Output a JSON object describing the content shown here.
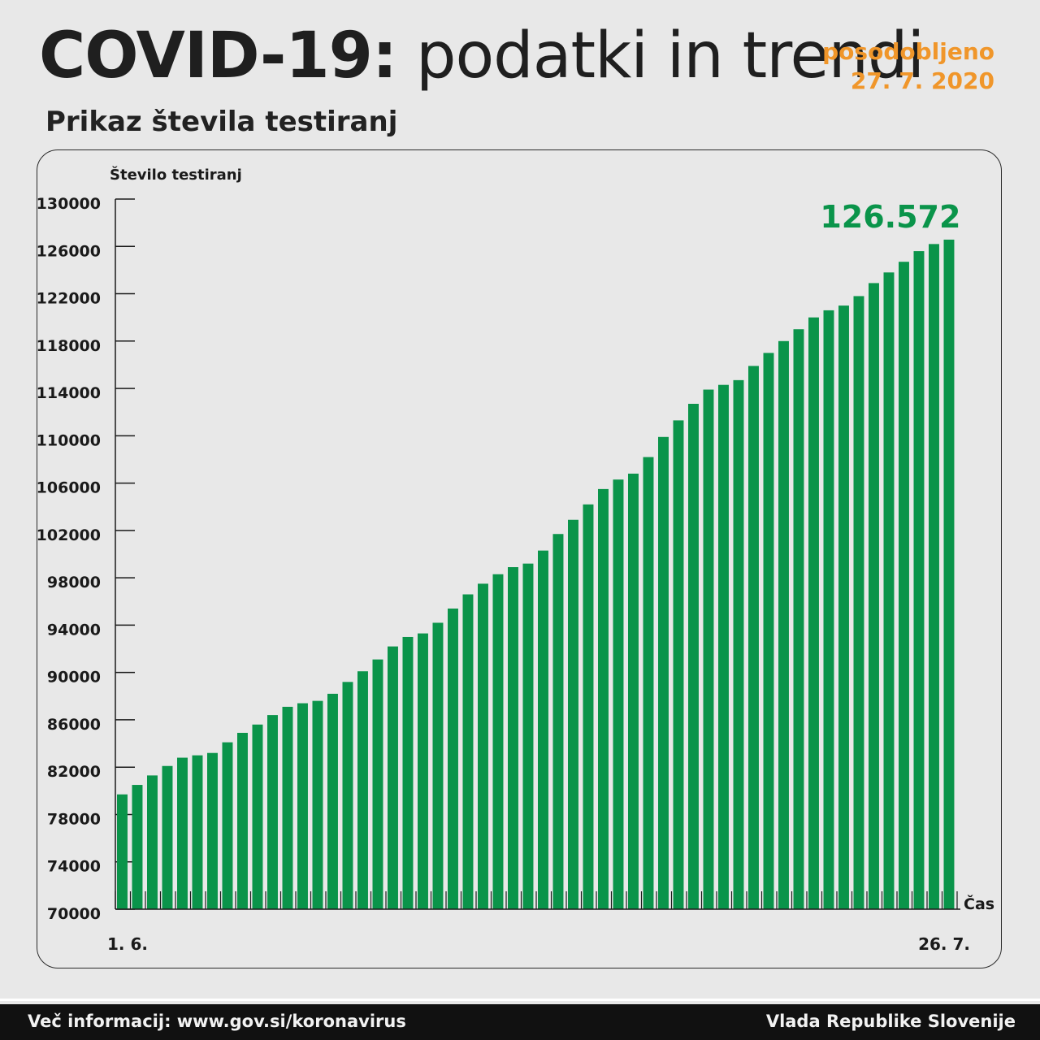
{
  "header": {
    "title_bold": "COVID-19:",
    "title_rest": " podatki in trendi",
    "updated_label": "posodobljeno",
    "updated_date": "27. 7. 2020",
    "subtitle": "Prikaz števila testiranj"
  },
  "footer": {
    "info": "Več informacij: www.gov.si/koronavirus",
    "org": "Vlada Republike Slovenije"
  },
  "colors": {
    "bar": "#0a944a",
    "highlight": "#0a944a",
    "accent": "#f0962a",
    "background": "#e8e8e8"
  },
  "chart_data": {
    "type": "bar",
    "ylabel": "Število testiranj",
    "xlabel": "Čas",
    "ylim": [
      70000,
      130000
    ],
    "yticks": [
      70000,
      74000,
      78000,
      82000,
      86000,
      90000,
      94000,
      98000,
      102000,
      106000,
      110000,
      114000,
      118000,
      122000,
      126000,
      130000
    ],
    "x_start_label": "1. 6.",
    "x_end_label": "26. 7.",
    "highlight_value_label": "126.572",
    "grid": false,
    "values": [
      79700,
      80500,
      81300,
      82100,
      82800,
      83000,
      83200,
      84100,
      84900,
      85600,
      86400,
      87100,
      87400,
      87600,
      88200,
      89200,
      90100,
      91100,
      92200,
      93000,
      93300,
      94200,
      95400,
      96600,
      97500,
      98300,
      98900,
      99200,
      100300,
      101700,
      102900,
      104200,
      105500,
      106300,
      106800,
      108200,
      109900,
      111300,
      112700,
      113900,
      114300,
      114700,
      115900,
      117000,
      118000,
      119000,
      120000,
      120600,
      121000,
      121800,
      122900,
      123800,
      124700,
      125600,
      126200,
      126572
    ]
  }
}
